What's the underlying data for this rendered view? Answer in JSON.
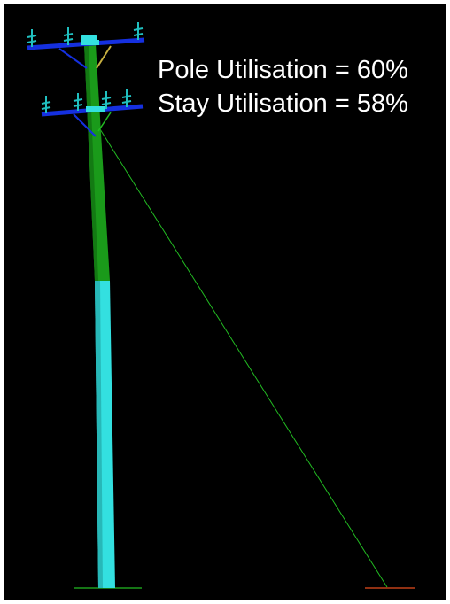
{
  "labels": {
    "pole_utilisation": "Pole Utilisation = 60%",
    "stay_utilisation": "Stay Utilisation = 58%"
  },
  "utilisation": {
    "pole_percent": 60,
    "stay_percent": 58
  },
  "colors": {
    "background": "#000000",
    "text": "#ffffff",
    "pole_upper": "#1a9a1a",
    "pole_lower": "#33e0e0",
    "crossarm": "#1530e0",
    "insulator": "#20c0c0",
    "stay_wire": "#22bb22",
    "ground_marker": "#1c9c1c",
    "stay_anchor": "#c04018",
    "hardware": "#c8b040"
  }
}
